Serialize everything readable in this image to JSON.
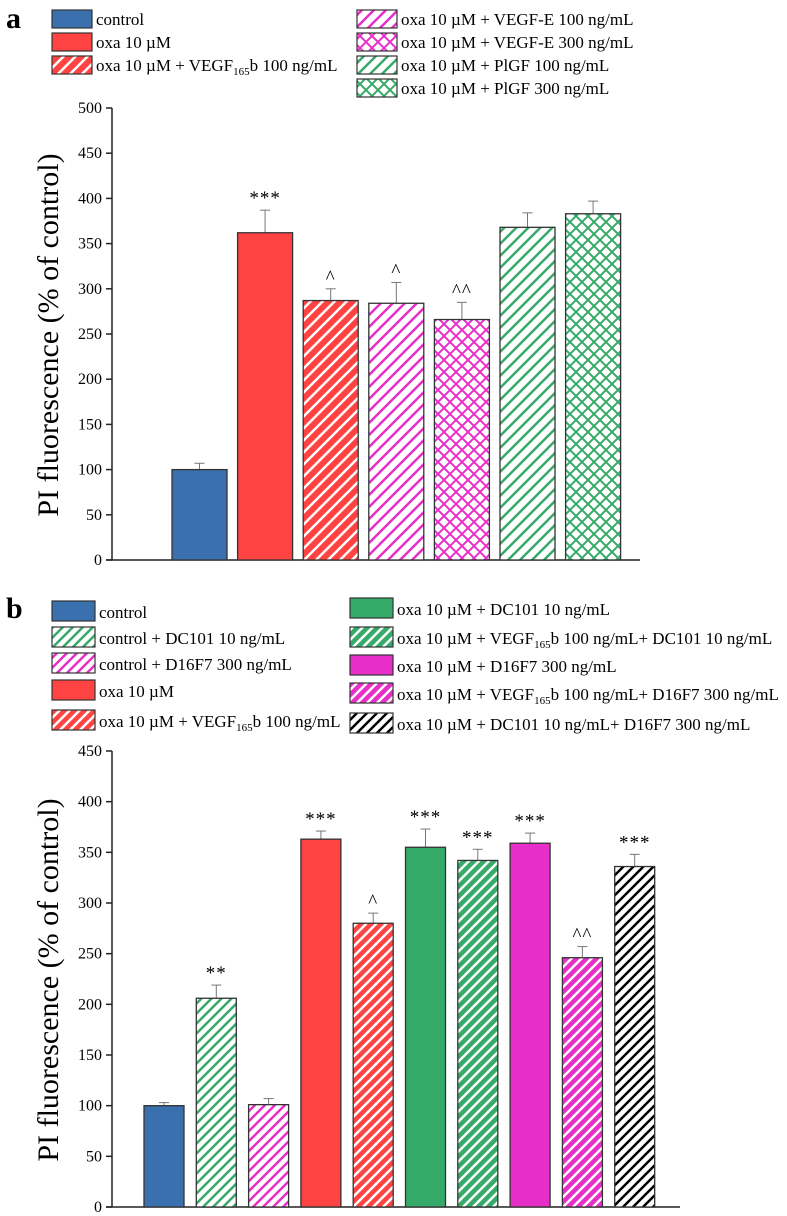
{
  "colors": {
    "blue": "#3a70ad",
    "red": "#ff4343",
    "magenta": "#e82ec8",
    "green": "#36aa68",
    "black": "#000000"
  },
  "chart_data": [
    {
      "panel": "a",
      "type": "bar",
      "ylabel": "PI fluorescence (% of control)",
      "ylim": [
        0,
        500
      ],
      "yticks": [
        0,
        50,
        100,
        150,
        200,
        250,
        300,
        350,
        400,
        450,
        500
      ],
      "bars": [
        {
          "label": {
            "pre": "control"
          },
          "value": 100,
          "error": 7,
          "color": "blue",
          "fill": "solid",
          "annotation": ""
        },
        {
          "label": {
            "pre": "oxa 10 µM"
          },
          "value": 362,
          "error": 25,
          "color": "red",
          "fill": "solid",
          "annotation": "***"
        },
        {
          "label": {
            "pre": "oxa 10 µM + VEGF",
            "sub": "165",
            "post": "b 100 ng/mL"
          },
          "value": 287,
          "error": 13,
          "color": "red",
          "fill": "hatch-white",
          "annotation": "^"
        },
        {
          "label": {
            "pre": "oxa 10 µM + VEGF-E 100 ng/mL"
          },
          "value": 284,
          "error": 23,
          "color": "magenta",
          "fill": "hatch",
          "annotation": "^"
        },
        {
          "label": {
            "pre": "oxa 10 µM + VEGF-E 300 ng/mL"
          },
          "value": 266,
          "error": 19,
          "color": "magenta",
          "fill": "cross",
          "annotation": "^^"
        },
        {
          "label": {
            "pre": "oxa 10 µM + PlGF 100 ng/mL"
          },
          "value": 368,
          "error": 16,
          "color": "green",
          "fill": "hatch",
          "annotation": ""
        },
        {
          "label": {
            "pre": "oxa 10 µM + PlGF 300 ng/mL"
          },
          "value": 383,
          "error": 14,
          "color": "green",
          "fill": "cross",
          "annotation": ""
        }
      ]
    },
    {
      "panel": "b",
      "type": "bar",
      "ylabel": "PI fluorescence (% of control)",
      "ylim": [
        0,
        450
      ],
      "yticks": [
        0,
        50,
        100,
        150,
        200,
        250,
        300,
        350,
        400,
        450
      ],
      "bars": [
        {
          "label": {
            "pre": "control"
          },
          "value": 100,
          "error": 3,
          "color": "blue",
          "fill": "solid",
          "annotation": ""
        },
        {
          "label": {
            "pre": "control + DC101 10 ng/mL"
          },
          "value": 206,
          "error": 13,
          "color": "green",
          "fill": "hatch",
          "annotation": "**"
        },
        {
          "label": {
            "pre": "control + D16F7 300 ng/mL"
          },
          "value": 101,
          "error": 6,
          "color": "magenta",
          "fill": "hatch",
          "annotation": ""
        },
        {
          "label": {
            "pre": "oxa 10 µM"
          },
          "value": 363,
          "error": 8,
          "color": "red",
          "fill": "solid",
          "annotation": "***"
        },
        {
          "label": {
            "pre": "oxa 10 µM + VEGF",
            "sub": "165",
            "post": "b 100 ng/mL"
          },
          "value": 280,
          "error": 10,
          "color": "red",
          "fill": "hatch-white",
          "annotation": "^"
        },
        {
          "label": {
            "pre": "oxa 10 µM + DC101 10 ng/mL"
          },
          "value": 355,
          "error": 18,
          "color": "green",
          "fill": "solid",
          "annotation": "***"
        },
        {
          "label": {
            "pre": "oxa 10 µM + VEGF",
            "sub": "165",
            "post": "b 100 ng/mL+ DC101 10 ng/mL"
          },
          "value": 342,
          "error": 11,
          "color": "green",
          "fill": "hatch-white",
          "annotation": "***"
        },
        {
          "label": {
            "pre": "oxa 10 µM + D16F7 300 ng/mL"
          },
          "value": 359,
          "error": 10,
          "color": "magenta",
          "fill": "solid",
          "annotation": "***"
        },
        {
          "label": {
            "pre": "oxa 10 µM + VEGF",
            "sub": "165",
            "post": "b 100 ng/mL+ D16F7 300 ng/mL"
          },
          "value": 246,
          "error": 11,
          "color": "magenta",
          "fill": "hatch-white",
          "annotation": "^^"
        },
        {
          "label": {
            "pre": "oxa 10 µM + DC101 10 ng/mL+ D16F7 300 ng/mL"
          },
          "value": 336,
          "error": 12,
          "color": "black",
          "fill": "hatch",
          "annotation": "***"
        }
      ]
    }
  ]
}
